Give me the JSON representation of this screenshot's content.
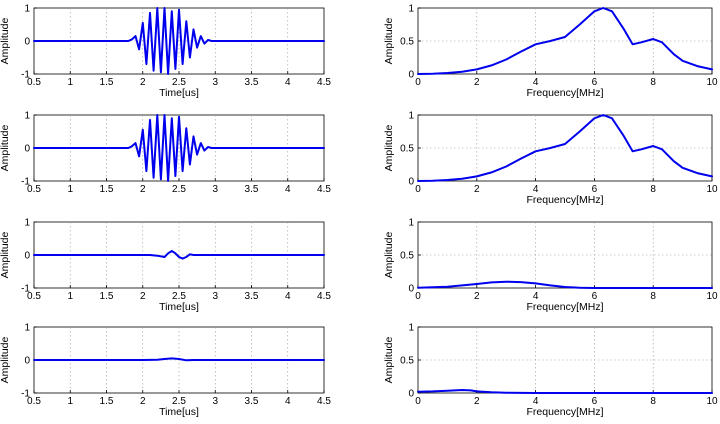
{
  "chart_data": [
    {
      "type": "line",
      "title": "",
      "xlabel": "Time[us]",
      "ylabel": "Amplitude",
      "xlim": [
        0.5,
        4.5
      ],
      "ylim": [
        -1,
        1
      ],
      "xticks": [
        "0.5",
        "1",
        "1.5",
        "2",
        "2.5",
        "3",
        "3.5",
        "4",
        "4.5"
      ],
      "yticks": [
        "-1",
        "0",
        "1"
      ],
      "grid": true,
      "series": [
        {
          "color": "#0000ee",
          "x": [
            0.5,
            1.8,
            1.85,
            1.9,
            1.95,
            2.0,
            2.05,
            2.1,
            2.15,
            2.2,
            2.25,
            2.3,
            2.35,
            2.4,
            2.45,
            2.5,
            2.55,
            2.6,
            2.65,
            2.7,
            2.75,
            2.8,
            2.85,
            2.9,
            2.95,
            3.0,
            3.05,
            4.5
          ],
          "y": [
            0,
            0,
            0.05,
            0.15,
            -0.25,
            0.55,
            -0.7,
            0.85,
            -0.9,
            1.0,
            -0.95,
            1.0,
            -1.0,
            0.9,
            -0.85,
            0.95,
            -0.7,
            0.6,
            -0.5,
            0.35,
            -0.2,
            0.15,
            -0.08,
            0.03,
            0,
            0,
            0,
            0
          ]
        }
      ]
    },
    {
      "type": "line",
      "title": "",
      "xlabel": "Frequency[MHz]",
      "ylabel": "Amplitude",
      "xlim": [
        0,
        10
      ],
      "ylim": [
        0,
        1
      ],
      "xticks": [
        "0",
        "2",
        "4",
        "6",
        "8",
        "10"
      ],
      "yticks": [
        "0",
        "0.5",
        "1"
      ],
      "grid": true,
      "series": [
        {
          "color": "#0000ee",
          "x": [
            0,
            0.5,
            1,
            1.5,
            2,
            2.5,
            3,
            3.5,
            4,
            4.5,
            5,
            5.5,
            6,
            6.3,
            6.6,
            7,
            7.3,
            7.6,
            8,
            8.3,
            8.7,
            9,
            9.5,
            10
          ],
          "y": [
            0,
            0.005,
            0.015,
            0.035,
            0.07,
            0.13,
            0.22,
            0.34,
            0.45,
            0.5,
            0.56,
            0.75,
            0.95,
            1.0,
            0.95,
            0.68,
            0.45,
            0.48,
            0.53,
            0.48,
            0.3,
            0.2,
            0.12,
            0.07
          ]
        }
      ]
    },
    {
      "type": "line",
      "title": "",
      "xlabel": "",
      "ylabel": "Amplitude",
      "xlim": [
        0.5,
        4.5
      ],
      "ylim": [
        -1,
        1
      ],
      "xticks": [
        "0.5",
        "1",
        "1.5",
        "2",
        "2.5",
        "3",
        "3.5",
        "4",
        "4.5"
      ],
      "yticks": [
        "-1",
        "0",
        "1"
      ],
      "grid": true,
      "series": [
        {
          "color": "#0000ee",
          "x": [
            0.5,
            1.8,
            1.85,
            1.9,
            1.95,
            2.0,
            2.05,
            2.1,
            2.15,
            2.2,
            2.25,
            2.3,
            2.35,
            2.4,
            2.45,
            2.5,
            2.55,
            2.6,
            2.65,
            2.7,
            2.75,
            2.8,
            2.85,
            2.9,
            2.95,
            3.0,
            3.05,
            4.5
          ],
          "y": [
            0,
            0,
            0.05,
            0.15,
            -0.25,
            0.55,
            -0.7,
            0.85,
            -0.9,
            1.0,
            -0.95,
            1.0,
            -1.0,
            0.9,
            -0.85,
            0.95,
            -0.7,
            0.6,
            -0.5,
            0.35,
            -0.2,
            0.15,
            -0.08,
            0.03,
            0,
            0,
            0,
            0
          ]
        }
      ]
    },
    {
      "type": "line",
      "title": "",
      "xlabel": "Frequency[MHz]",
      "ylabel": "Amplitude",
      "xlim": [
        0,
        10
      ],
      "ylim": [
        0,
        1
      ],
      "xticks": [
        "0",
        "2",
        "4",
        "6",
        "8",
        "10"
      ],
      "yticks": [
        "0",
        "0.5",
        "1"
      ],
      "grid": true,
      "series": [
        {
          "color": "#0000ee",
          "x": [
            0,
            0.5,
            1,
            1.5,
            2,
            2.5,
            3,
            3.5,
            4,
            4.5,
            5,
            5.5,
            6,
            6.3,
            6.6,
            7,
            7.3,
            7.6,
            8,
            8.3,
            8.7,
            9,
            9.5,
            10
          ],
          "y": [
            0,
            0.005,
            0.015,
            0.035,
            0.07,
            0.13,
            0.22,
            0.34,
            0.45,
            0.5,
            0.56,
            0.75,
            0.95,
            1.0,
            0.95,
            0.68,
            0.45,
            0.48,
            0.53,
            0.48,
            0.3,
            0.2,
            0.12,
            0.07
          ]
        }
      ]
    },
    {
      "type": "line",
      "title": "",
      "xlabel": "Time[us]",
      "ylabel": "Amplitude",
      "xlim": [
        0.5,
        4.5
      ],
      "ylim": [
        -1,
        1
      ],
      "xticks": [
        "0.5",
        "1",
        "1.5",
        "2",
        "2.5",
        "3",
        "3.5",
        "4",
        "4.5"
      ],
      "yticks": [
        "-1",
        "0",
        "1"
      ],
      "grid": true,
      "series": [
        {
          "color": "#0000ee",
          "x": [
            0.5,
            2.0,
            2.1,
            2.2,
            2.3,
            2.35,
            2.4,
            2.45,
            2.5,
            2.55,
            2.6,
            2.65,
            2.7,
            2.8,
            4.5
          ],
          "y": [
            0,
            0,
            0,
            -0.02,
            -0.06,
            0.05,
            0.12,
            0.05,
            -0.06,
            -0.11,
            -0.06,
            0.02,
            0,
            0,
            0
          ]
        }
      ]
    },
    {
      "type": "line",
      "title": "",
      "xlabel": "Frequency[MHz]",
      "ylabel": "Amplitude",
      "xlim": [
        0,
        10
      ],
      "ylim": [
        0,
        1
      ],
      "xticks": [
        "0",
        "2",
        "4",
        "6",
        "8",
        "10"
      ],
      "yticks": [
        "0",
        "0.5",
        "1"
      ],
      "grid": true,
      "series": [
        {
          "color": "#0000ee",
          "x": [
            0,
            0.5,
            1,
            1.5,
            2,
            2.5,
            3,
            3.5,
            4,
            4.5,
            5,
            5.5,
            6,
            7,
            8,
            10
          ],
          "y": [
            0.005,
            0.01,
            0.02,
            0.04,
            0.06,
            0.085,
            0.095,
            0.09,
            0.07,
            0.04,
            0.015,
            0.005,
            0,
            0,
            0,
            0
          ]
        }
      ]
    },
    {
      "type": "line",
      "title": "",
      "xlabel": "Time[us]",
      "ylabel": "Amplitude",
      "xlim": [
        0.5,
        4.5
      ],
      "ylim": [
        -1,
        1
      ],
      "xticks": [
        "0.5",
        "1",
        "1.5",
        "2",
        "2.5",
        "3",
        "3.5",
        "4",
        "4.5"
      ],
      "yticks": [
        "-1",
        "0",
        "1"
      ],
      "grid": true,
      "series": [
        {
          "color": "#0000ee",
          "x": [
            0.5,
            1.5,
            2.0,
            2.2,
            2.3,
            2.4,
            2.5,
            2.6,
            2.7,
            3.0,
            4.5
          ],
          "y": [
            0,
            0,
            0,
            0.01,
            0.03,
            0.05,
            0.03,
            -0.01,
            0,
            0,
            0
          ]
        }
      ]
    },
    {
      "type": "line",
      "title": "",
      "xlabel": "Frequency[MHz]",
      "ylabel": "Amplitude",
      "xlim": [
        0,
        10
      ],
      "ylim": [
        0,
        1
      ],
      "xticks": [
        "0",
        "2",
        "4",
        "6",
        "8",
        "10"
      ],
      "yticks": [
        "0",
        "0.5",
        "1"
      ],
      "grid": true,
      "series": [
        {
          "color": "#0000ee",
          "x": [
            0,
            0.5,
            1,
            1.5,
            1.8,
            2,
            2.5,
            3,
            4,
            6,
            10
          ],
          "y": [
            0.02,
            0.025,
            0.035,
            0.045,
            0.04,
            0.025,
            0.01,
            0.005,
            0,
            0,
            0
          ]
        }
      ]
    }
  ]
}
